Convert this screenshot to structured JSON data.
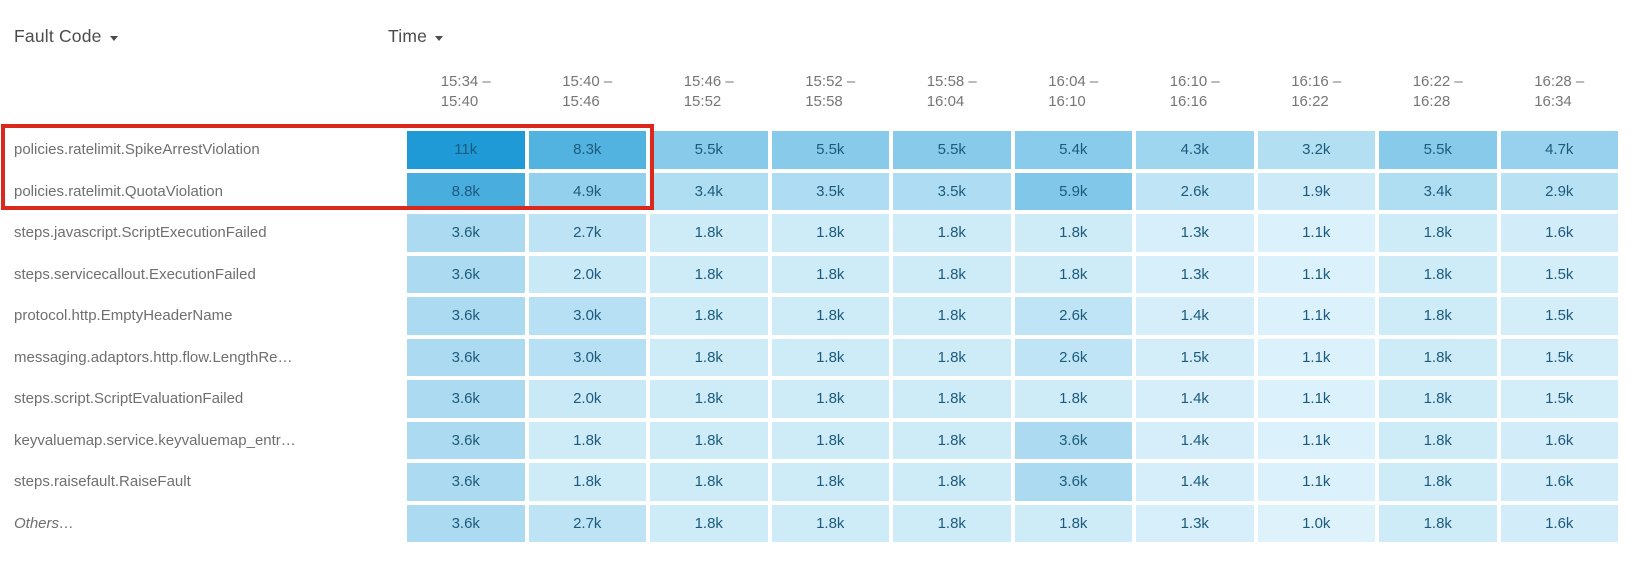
{
  "header": {
    "fault_code_label": "Fault Code",
    "time_label": "Time"
  },
  "annotation": {
    "type": "highlight-box",
    "color": "#da291c",
    "covers": "rows policies.ratelimit.SpikeArrestViolation and policies.ratelimit.QuotaViolation, columns 15:34 – 15:40 and 15:40 – 15:46 including labels"
  },
  "colors": {
    "background": "#ffffff",
    "header_text": "#4c4c4c",
    "column_header_text": "#767676",
    "row_label_text": "#6f6f6f"
  },
  "chart_data": {
    "type": "heatmap",
    "x_axis_label": "Time",
    "y_axis_label": "Fault Code",
    "x_labels": [
      "15:34 – 15:40",
      "15:40 – 15:46",
      "15:46 – 15:52",
      "15:52 – 15:58",
      "15:58 – 16:04",
      "16:04 – 16:10",
      "16:10 – 16:16",
      "16:16 – 16:22",
      "16:22 – 16:28",
      "16:28 – 16:34"
    ],
    "value_range": [
      1000,
      11000
    ],
    "colors": {
      "min": "#ddf2fb",
      "max": "#1f9ad6",
      "text": "#1d5b7c"
    },
    "series": [
      {
        "name": "policies.ratelimit.SpikeArrestViolation",
        "display": [
          "11k",
          "8.3k",
          "5.5k",
          "5.5k",
          "5.5k",
          "5.4k",
          "4.3k",
          "3.2k",
          "5.5k",
          "4.7k"
        ],
        "values": [
          11000,
          8300,
          5500,
          5500,
          5500,
          5400,
          4300,
          3200,
          5500,
          4700
        ]
      },
      {
        "name": "policies.ratelimit.QuotaViolation",
        "display": [
          "8.8k",
          "4.9k",
          "3.4k",
          "3.5k",
          "3.5k",
          "5.9k",
          "2.6k",
          "1.9k",
          "3.4k",
          "2.9k"
        ],
        "values": [
          8800,
          4900,
          3400,
          3500,
          3500,
          5900,
          2600,
          1900,
          3400,
          2900
        ]
      },
      {
        "name": "steps.javascript.ScriptExecutionFailed",
        "display": [
          "3.6k",
          "2.7k",
          "1.8k",
          "1.8k",
          "1.8k",
          "1.8k",
          "1.3k",
          "1.1k",
          "1.8k",
          "1.6k"
        ],
        "values": [
          3600,
          2700,
          1800,
          1800,
          1800,
          1800,
          1300,
          1100,
          1800,
          1600
        ]
      },
      {
        "name": "steps.servicecallout.ExecutionFailed",
        "display": [
          "3.6k",
          "2.0k",
          "1.8k",
          "1.8k",
          "1.8k",
          "1.8k",
          "1.3k",
          "1.1k",
          "1.8k",
          "1.5k"
        ],
        "values": [
          3600,
          2000,
          1800,
          1800,
          1800,
          1800,
          1300,
          1100,
          1800,
          1500
        ]
      },
      {
        "name": "protocol.http.EmptyHeaderName",
        "display": [
          "3.6k",
          "3.0k",
          "1.8k",
          "1.8k",
          "1.8k",
          "2.6k",
          "1.4k",
          "1.1k",
          "1.8k",
          "1.5k"
        ],
        "values": [
          3600,
          3000,
          1800,
          1800,
          1800,
          2600,
          1400,
          1100,
          1800,
          1500
        ]
      },
      {
        "name": "messaging.adaptors.http.flow.LengthRe…",
        "display": [
          "3.6k",
          "3.0k",
          "1.8k",
          "1.8k",
          "1.8k",
          "2.6k",
          "1.5k",
          "1.1k",
          "1.8k",
          "1.5k"
        ],
        "values": [
          3600,
          3000,
          1800,
          1800,
          1800,
          2600,
          1500,
          1100,
          1800,
          1500
        ]
      },
      {
        "name": "steps.script.ScriptEvaluationFailed",
        "display": [
          "3.6k",
          "2.0k",
          "1.8k",
          "1.8k",
          "1.8k",
          "1.8k",
          "1.4k",
          "1.1k",
          "1.8k",
          "1.5k"
        ],
        "values": [
          3600,
          2000,
          1800,
          1800,
          1800,
          1800,
          1400,
          1100,
          1800,
          1500
        ]
      },
      {
        "name": "keyvaluemap.service.keyvaluemap_entr…",
        "display": [
          "3.6k",
          "1.8k",
          "1.8k",
          "1.8k",
          "1.8k",
          "3.6k",
          "1.4k",
          "1.1k",
          "1.8k",
          "1.6k"
        ],
        "values": [
          3600,
          1800,
          1800,
          1800,
          1800,
          3600,
          1400,
          1100,
          1800,
          1600
        ]
      },
      {
        "name": "steps.raisefault.RaiseFault",
        "display": [
          "3.6k",
          "1.8k",
          "1.8k",
          "1.8k",
          "1.8k",
          "3.6k",
          "1.4k",
          "1.1k",
          "1.8k",
          "1.6k"
        ],
        "values": [
          3600,
          1800,
          1800,
          1800,
          1800,
          3600,
          1400,
          1100,
          1800,
          1600
        ]
      },
      {
        "name": "Others…",
        "italic": true,
        "display": [
          "3.6k",
          "2.7k",
          "1.8k",
          "1.8k",
          "1.8k",
          "1.8k",
          "1.3k",
          "1.0k",
          "1.8k",
          "1.6k"
        ],
        "values": [
          3600,
          2700,
          1800,
          1800,
          1800,
          1800,
          1300,
          1000,
          1800,
          1600
        ]
      }
    ]
  }
}
